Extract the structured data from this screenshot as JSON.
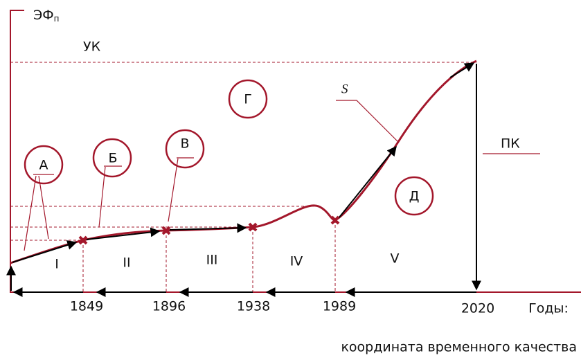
{
  "y_axis": {
    "label": "ЭФ",
    "subscript": "п"
  },
  "levels": {
    "top": "УК",
    "height": "ПК"
  },
  "curve_label": "S",
  "zones": [
    "Г",
    "Д"
  ],
  "stages": [
    {
      "letter": "А",
      "numeral": "I"
    },
    {
      "letter": "Б",
      "numeral": "II"
    },
    {
      "letter": "В",
      "numeral": "III"
    },
    {
      "numeral": "IV"
    },
    {
      "numeral": "V"
    }
  ],
  "years": [
    "1849",
    "1896",
    "1938",
    "1989",
    "2020"
  ],
  "x_axis": {
    "label": "Годы:",
    "caption": "координата временного качества"
  }
}
